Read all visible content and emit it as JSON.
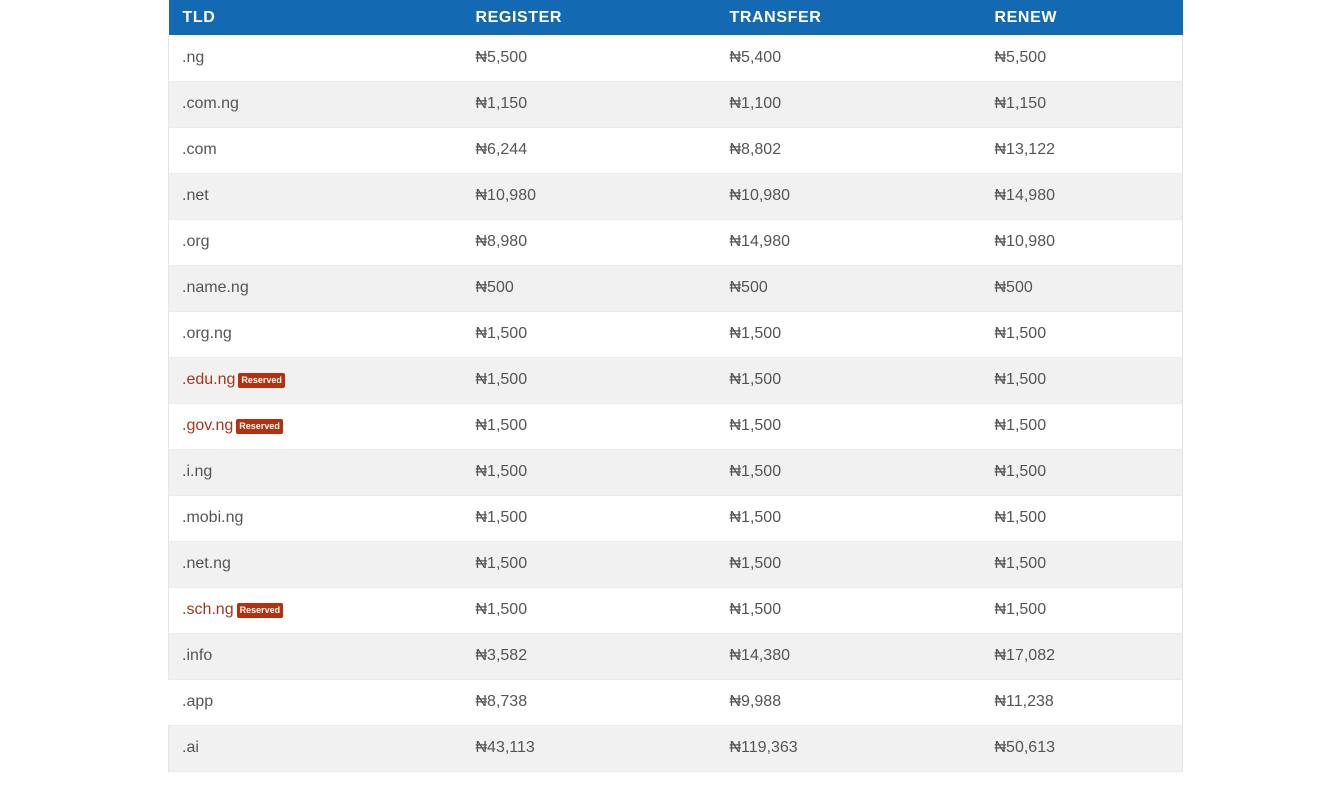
{
  "table": {
    "headers": [
      "TLD",
      "REGISTER",
      "TRANSFER",
      "RENEW"
    ],
    "reserved_badge": "Reserved",
    "rows": [
      {
        "tld": ".ng",
        "register": "₦5,500",
        "transfer": "₦5,400",
        "renew": "₦5,500",
        "reserved": false
      },
      {
        "tld": ".com.ng",
        "register": "₦1,150",
        "transfer": "₦1,100",
        "renew": "₦1,150",
        "reserved": false
      },
      {
        "tld": ".com",
        "register": "₦6,244",
        "transfer": "₦8,802",
        "renew": "₦13,122",
        "reserved": false
      },
      {
        "tld": ".net",
        "register": "₦10,980",
        "transfer": "₦10,980",
        "renew": "₦14,980",
        "reserved": false
      },
      {
        "tld": ".org",
        "register": "₦8,980",
        "transfer": "₦14,980",
        "renew": "₦10,980",
        "reserved": false
      },
      {
        "tld": ".name.ng",
        "register": "₦500",
        "transfer": "₦500",
        "renew": "₦500",
        "reserved": false
      },
      {
        "tld": ".org.ng",
        "register": "₦1,500",
        "transfer": "₦1,500",
        "renew": "₦1,500",
        "reserved": false
      },
      {
        "tld": ".edu.ng",
        "register": "₦1,500",
        "transfer": "₦1,500",
        "renew": "₦1,500",
        "reserved": true
      },
      {
        "tld": ".gov.ng",
        "register": "₦1,500",
        "transfer": "₦1,500",
        "renew": "₦1,500",
        "reserved": true
      },
      {
        "tld": ".i.ng",
        "register": "₦1,500",
        "transfer": "₦1,500",
        "renew": "₦1,500",
        "reserved": false
      },
      {
        "tld": ".mobi.ng",
        "register": "₦1,500",
        "transfer": "₦1,500",
        "renew": "₦1,500",
        "reserved": false
      },
      {
        "tld": ".net.ng",
        "register": "₦1,500",
        "transfer": "₦1,500",
        "renew": "₦1,500",
        "reserved": false
      },
      {
        "tld": ".sch.ng",
        "register": "₦1,500",
        "transfer": "₦1,500",
        "renew": "₦1,500",
        "reserved": true
      },
      {
        "tld": ".info",
        "register": "₦3,582",
        "transfer": "₦14,380",
        "renew": "₦17,082",
        "reserved": false
      },
      {
        "tld": ".app",
        "register": "₦8,738",
        "transfer": "₦9,988",
        "renew": "₦11,238",
        "reserved": false
      },
      {
        "tld": ".ai",
        "register": "₦43,113",
        "transfer": "₦119,363",
        "renew": "₦50,613",
        "reserved": false
      }
    ]
  },
  "colors": {
    "header_bg": "#136ab2",
    "header_text": "#ffffff",
    "reserved_text": "#a8361a",
    "badge_bg": "#b5300f",
    "row_alt_bg": "#f1f1f1",
    "cell_text": "#555555"
  }
}
